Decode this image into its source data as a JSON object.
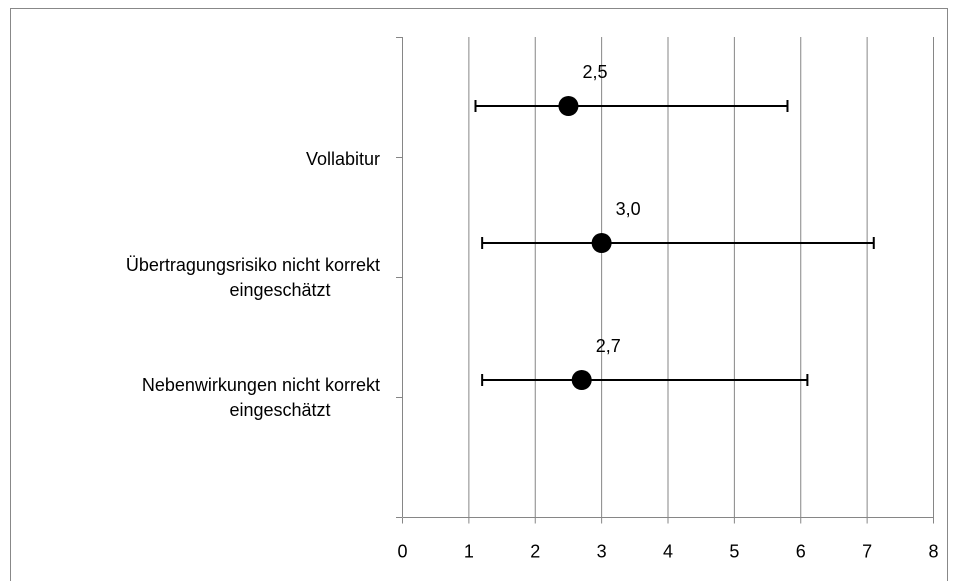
{
  "chart_data": {
    "type": "dot-errorbar",
    "categories": [
      "Vollabitur",
      "Übertragungsrisiko nicht korrekt eingeschätzt",
      "Nebenwirkungen nicht korrekt eingeschätzt"
    ],
    "values": [
      2.5,
      3.0,
      2.7
    ],
    "value_labels": [
      "2,5",
      "3,0",
      "2,7"
    ],
    "lower": [
      1.1,
      1.2,
      1.2
    ],
    "upper": [
      5.8,
      7.1,
      6.1
    ],
    "color": "#000000",
    "xlim": [
      0,
      8
    ],
    "xticks": [
      0,
      1,
      2,
      3,
      4,
      5,
      6,
      7,
      8
    ],
    "grid": true
  }
}
